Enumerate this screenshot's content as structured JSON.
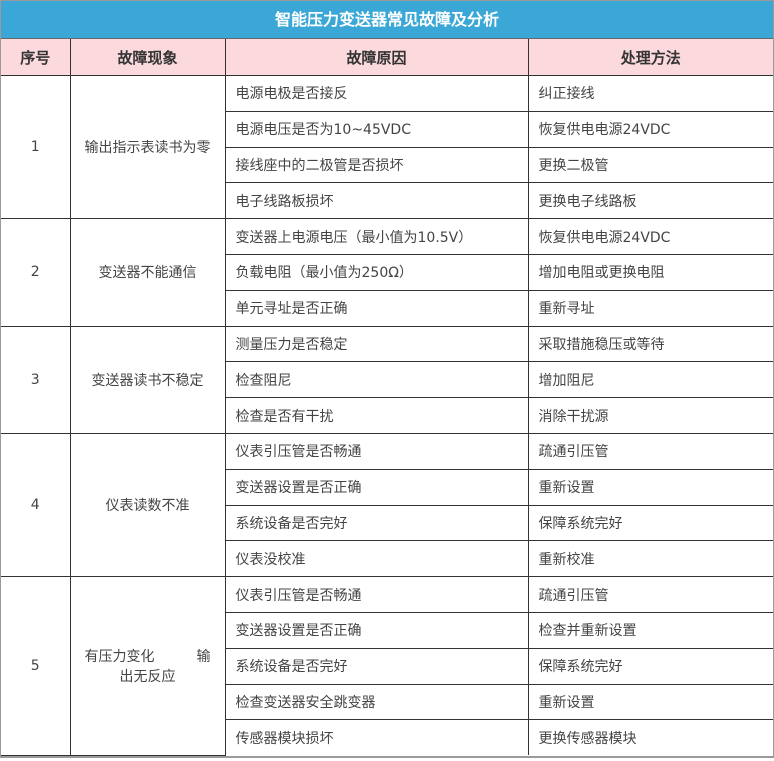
{
  "title": "智能压力变送器常见故障及分析",
  "headers": [
    "序号",
    "故障现象",
    "故障原因",
    "处理方法"
  ],
  "groups": [
    {
      "no": "1",
      "symptom": "输出指示表读书为零",
      "items": [
        [
          "电源电极是否接反",
          "纠正接线"
        ],
        [
          "电源电压是否为10~45VDC",
          "恢复供电电源24VDC"
        ],
        [
          "接线座中的二极管是否损坏",
          "更换二极管"
        ],
        [
          "电子线路板损坏",
          "更换电子线路板"
        ]
      ]
    },
    {
      "no": "2",
      "symptom": "变送器不能通信",
      "items": [
        [
          "变送器上电源电压（最小值为10.5V）",
          "恢复供电电源24VDC"
        ],
        [
          "负载电阻（最小值为250Ω）",
          "增加电阻或更换电阻"
        ],
        [
          "单元寻址是否正确",
          "重新寻址"
        ]
      ]
    },
    {
      "no": "3",
      "symptom": "变送器读书不稳定",
      "items": [
        [
          "测量压力是否稳定",
          "采取措施稳压或等待"
        ],
        [
          "检查阻尼",
          "增加阻尼"
        ],
        [
          "检查是否有干扰",
          "消除干扰源"
        ]
      ]
    },
    {
      "no": "4",
      "symptom": "仪表读数不准",
      "items": [
        [
          "仪表引压管是否畅通",
          "疏通引压管"
        ],
        [
          "变送器设置是否正确",
          "重新设置"
        ],
        [
          "系统设备是否完好",
          "保障系统完好"
        ],
        [
          "仪表没校准",
          "重新校准"
        ]
      ]
    },
    {
      "no": "5",
      "symptom": "有压力变化　　　输出无反应",
      "items": [
        [
          "仪表引压管是否畅通",
          "疏通引压管"
        ],
        [
          "变送器设置是否正确",
          "检查并重新设置"
        ],
        [
          "系统设备是否完好",
          "保障系统完好"
        ],
        [
          "检查变送器安全跳变器",
          "重新设置"
        ],
        [
          "传感器模块损坏",
          "更换传感器模块"
        ]
      ]
    }
  ]
}
